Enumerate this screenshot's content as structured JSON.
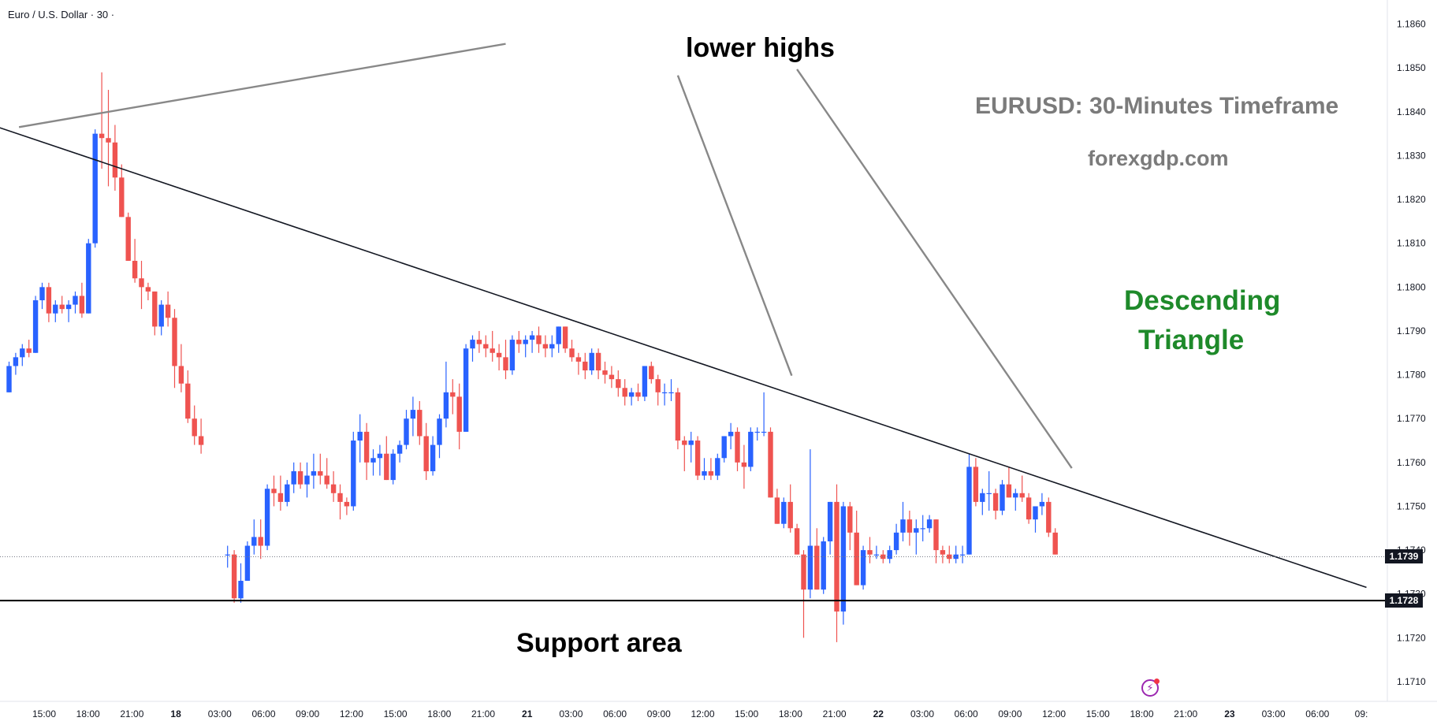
{
  "symbol_title": "Euro / U.S. Dollar · 30 ·",
  "annotations": {
    "lower_highs": "lower highs",
    "timeframe": "EURUSD: 30-Minutes Timeframe",
    "website": "forexgdp.com",
    "pattern_line1": "Descending",
    "pattern_line2": "Triangle",
    "support": "Support area"
  },
  "price_tags": {
    "last": "1.1739",
    "support": "1.1728"
  },
  "icons": {
    "flash": "flash-icon"
  },
  "colors": {
    "bull": "#2962ff",
    "bear": "#ef5350",
    "pattern_text": "#1e8a2a",
    "watermark_text": "#7b7b7b"
  },
  "chart_data": {
    "type": "candlestick",
    "title": "Euro / U.S. Dollar · 30 ·",
    "interval_minutes": 30,
    "ylim": [
      1.17055,
      1.18655
    ],
    "y_ticks": [
      "1.1860",
      "1.1850",
      "1.1840",
      "1.1830",
      "1.1820",
      "1.1810",
      "1.1800",
      "1.1790",
      "1.1780",
      "1.1770",
      "1.1760",
      "1.1750",
      "1.1740",
      "1.1730",
      "1.1720",
      "1.1710"
    ],
    "x_ticks": [
      "15:00",
      "18:00",
      "21:00",
      "18",
      "03:00",
      "06:00",
      "09:00",
      "12:00",
      "15:00",
      "18:00",
      "21:00",
      "21",
      "03:00",
      "06:00",
      "09:00",
      "12:00",
      "15:00",
      "18:00",
      "21:00",
      "22",
      "03:00",
      "06:00",
      "09:00",
      "12:00",
      "15:00",
      "18:00",
      "21:00",
      "23",
      "03:00",
      "06:00",
      "09:"
    ],
    "candles": [
      {
        "o": 1.1776,
        "h": 1.1783,
        "l": 1.1776,
        "c": 1.1782
      },
      {
        "o": 1.1782,
        "h": 1.1785,
        "l": 1.178,
        "c": 1.1784
      },
      {
        "o": 1.1784,
        "h": 1.1787,
        "l": 1.1782,
        "c": 1.1786
      },
      {
        "o": 1.1786,
        "h": 1.1788,
        "l": 1.1784,
        "c": 1.1785
      },
      {
        "o": 1.1785,
        "h": 1.1798,
        "l": 1.1785,
        "c": 1.1797
      },
      {
        "o": 1.1797,
        "h": 1.1801,
        "l": 1.1795,
        "c": 1.18
      },
      {
        "o": 1.18,
        "h": 1.1801,
        "l": 1.1792,
        "c": 1.1794
      },
      {
        "o": 1.1794,
        "h": 1.1797,
        "l": 1.1792,
        "c": 1.1796
      },
      {
        "o": 1.1796,
        "h": 1.1798,
        "l": 1.1794,
        "c": 1.1795
      },
      {
        "o": 1.1795,
        "h": 1.1797,
        "l": 1.1792,
        "c": 1.1796
      },
      {
        "o": 1.1796,
        "h": 1.1799,
        "l": 1.1794,
        "c": 1.1798
      },
      {
        "o": 1.1798,
        "h": 1.1801,
        "l": 1.1793,
        "c": 1.1794
      },
      {
        "o": 1.1794,
        "h": 1.1811,
        "l": 1.1794,
        "c": 1.181
      },
      {
        "o": 1.181,
        "h": 1.1836,
        "l": 1.1809,
        "c": 1.1835
      },
      {
        "o": 1.1835,
        "h": 1.1849,
        "l": 1.1827,
        "c": 1.1834
      },
      {
        "o": 1.1834,
        "h": 1.1845,
        "l": 1.1823,
        "c": 1.1833
      },
      {
        "o": 1.1833,
        "h": 1.1837,
        "l": 1.1822,
        "c": 1.1825
      },
      {
        "o": 1.1825,
        "h": 1.1828,
        "l": 1.1816,
        "c": 1.1816
      },
      {
        "o": 1.1816,
        "h": 1.1817,
        "l": 1.1806,
        "c": 1.1806
      },
      {
        "o": 1.1806,
        "h": 1.1811,
        "l": 1.1801,
        "c": 1.1802
      },
      {
        "o": 1.1802,
        "h": 1.1806,
        "l": 1.1795,
        "c": 1.18
      },
      {
        "o": 1.18,
        "h": 1.1801,
        "l": 1.1797,
        "c": 1.1799
      },
      {
        "o": 1.1799,
        "h": 1.1799,
        "l": 1.1789,
        "c": 1.1791
      },
      {
        "o": 1.1791,
        "h": 1.1797,
        "l": 1.1789,
        "c": 1.1796
      },
      {
        "o": 1.1796,
        "h": 1.1799,
        "l": 1.1791,
        "c": 1.1793
      },
      {
        "o": 1.1793,
        "h": 1.1795,
        "l": 1.1777,
        "c": 1.1782
      },
      {
        "o": 1.1782,
        "h": 1.1787,
        "l": 1.1776,
        "c": 1.1778
      },
      {
        "o": 1.1778,
        "h": 1.1781,
        "l": 1.1769,
        "c": 1.177
      },
      {
        "o": 1.177,
        "h": 1.1773,
        "l": 1.1764,
        "c": 1.1766
      },
      {
        "o": 1.1766,
        "h": 1.177,
        "l": 1.1762,
        "c": 1.1764
      },
      {
        "o": 1.1739,
        "h": 1.1741,
        "l": 1.1736,
        "c": 1.1739
      },
      {
        "o": 1.1739,
        "h": 1.174,
        "l": 1.1728,
        "c": 1.1729
      },
      {
        "o": 1.1729,
        "h": 1.1737,
        "l": 1.1728,
        "c": 1.1733
      },
      {
        "o": 1.1733,
        "h": 1.1742,
        "l": 1.1733,
        "c": 1.1741
      },
      {
        "o": 1.1741,
        "h": 1.1747,
        "l": 1.1739,
        "c": 1.1743
      },
      {
        "o": 1.1743,
        "h": 1.1747,
        "l": 1.1738,
        "c": 1.1741
      },
      {
        "o": 1.1741,
        "h": 1.1755,
        "l": 1.174,
        "c": 1.1754
      },
      {
        "o": 1.1754,
        "h": 1.1757,
        "l": 1.175,
        "c": 1.1753
      },
      {
        "o": 1.1753,
        "h": 1.1757,
        "l": 1.1749,
        "c": 1.1751
      },
      {
        "o": 1.1751,
        "h": 1.1756,
        "l": 1.175,
        "c": 1.1755
      },
      {
        "o": 1.1755,
        "h": 1.176,
        "l": 1.1753,
        "c": 1.1758
      },
      {
        "o": 1.1758,
        "h": 1.176,
        "l": 1.1754,
        "c": 1.1755
      },
      {
        "o": 1.1755,
        "h": 1.176,
        "l": 1.1752,
        "c": 1.1757
      },
      {
        "o": 1.1757,
        "h": 1.1762,
        "l": 1.1754,
        "c": 1.1758
      },
      {
        "o": 1.1758,
        "h": 1.1762,
        "l": 1.1755,
        "c": 1.1757
      },
      {
        "o": 1.1757,
        "h": 1.1761,
        "l": 1.1754,
        "c": 1.1755
      },
      {
        "o": 1.1755,
        "h": 1.1758,
        "l": 1.1751,
        "c": 1.1753
      },
      {
        "o": 1.1753,
        "h": 1.1755,
        "l": 1.1747,
        "c": 1.1751
      },
      {
        "o": 1.1751,
        "h": 1.1752,
        "l": 1.1748,
        "c": 1.175
      },
      {
        "o": 1.175,
        "h": 1.1767,
        "l": 1.1749,
        "c": 1.1765
      },
      {
        "o": 1.1765,
        "h": 1.1771,
        "l": 1.176,
        "c": 1.1767
      },
      {
        "o": 1.1767,
        "h": 1.1769,
        "l": 1.1756,
        "c": 1.176
      },
      {
        "o": 1.176,
        "h": 1.1763,
        "l": 1.1757,
        "c": 1.1761
      },
      {
        "o": 1.1761,
        "h": 1.1764,
        "l": 1.1757,
        "c": 1.1762
      },
      {
        "o": 1.1762,
        "h": 1.1766,
        "l": 1.1756,
        "c": 1.1756
      },
      {
        "o": 1.1756,
        "h": 1.1763,
        "l": 1.1755,
        "c": 1.1762
      },
      {
        "o": 1.1762,
        "h": 1.1765,
        "l": 1.176,
        "c": 1.1764
      },
      {
        "o": 1.1764,
        "h": 1.1772,
        "l": 1.1763,
        "c": 1.177
      },
      {
        "o": 1.177,
        "h": 1.1775,
        "l": 1.1766,
        "c": 1.1772
      },
      {
        "o": 1.1772,
        "h": 1.1774,
        "l": 1.1764,
        "c": 1.1766
      },
      {
        "o": 1.1766,
        "h": 1.1769,
        "l": 1.1756,
        "c": 1.1758
      },
      {
        "o": 1.1758,
        "h": 1.1766,
        "l": 1.1757,
        "c": 1.1764
      },
      {
        "o": 1.1764,
        "h": 1.1771,
        "l": 1.1761,
        "c": 1.177
      },
      {
        "o": 1.177,
        "h": 1.1783,
        "l": 1.1768,
        "c": 1.1776
      },
      {
        "o": 1.1776,
        "h": 1.1779,
        "l": 1.1771,
        "c": 1.1775
      },
      {
        "o": 1.1775,
        "h": 1.1778,
        "l": 1.1763,
        "c": 1.1767
      },
      {
        "o": 1.1767,
        "h": 1.1787,
        "l": 1.1767,
        "c": 1.1786
      },
      {
        "o": 1.1786,
        "h": 1.1789,
        "l": 1.1783,
        "c": 1.1788
      },
      {
        "o": 1.1788,
        "h": 1.179,
        "l": 1.1785,
        "c": 1.1787
      },
      {
        "o": 1.1787,
        "h": 1.1789,
        "l": 1.1784,
        "c": 1.1786
      },
      {
        "o": 1.1786,
        "h": 1.179,
        "l": 1.1783,
        "c": 1.1785
      },
      {
        "o": 1.1785,
        "h": 1.1787,
        "l": 1.1781,
        "c": 1.1784
      },
      {
        "o": 1.1784,
        "h": 1.1788,
        "l": 1.1779,
        "c": 1.1781
      },
      {
        "o": 1.1781,
        "h": 1.1789,
        "l": 1.178,
        "c": 1.1788
      },
      {
        "o": 1.1788,
        "h": 1.179,
        "l": 1.1785,
        "c": 1.1787
      },
      {
        "o": 1.1787,
        "h": 1.1789,
        "l": 1.1784,
        "c": 1.1788
      },
      {
        "o": 1.1788,
        "h": 1.179,
        "l": 1.1785,
        "c": 1.1789
      },
      {
        "o": 1.1789,
        "h": 1.1791,
        "l": 1.1785,
        "c": 1.1787
      },
      {
        "o": 1.1787,
        "h": 1.1789,
        "l": 1.1784,
        "c": 1.1786
      },
      {
        "o": 1.1786,
        "h": 1.1789,
        "l": 1.1784,
        "c": 1.1787
      },
      {
        "o": 1.1787,
        "h": 1.1791,
        "l": 1.1785,
        "c": 1.1791
      },
      {
        "o": 1.1791,
        "h": 1.1791,
        "l": 1.1785,
        "c": 1.1786
      },
      {
        "o": 1.1786,
        "h": 1.1788,
        "l": 1.1783,
        "c": 1.1784
      },
      {
        "o": 1.1784,
        "h": 1.1785,
        "l": 1.178,
        "c": 1.1783
      },
      {
        "o": 1.1783,
        "h": 1.1785,
        "l": 1.1779,
        "c": 1.1781
      },
      {
        "o": 1.1781,
        "h": 1.1786,
        "l": 1.178,
        "c": 1.1785
      },
      {
        "o": 1.1785,
        "h": 1.1786,
        "l": 1.1779,
        "c": 1.1781
      },
      {
        "o": 1.1781,
        "h": 1.1783,
        "l": 1.1778,
        "c": 1.178
      },
      {
        "o": 1.178,
        "h": 1.1782,
        "l": 1.1777,
        "c": 1.1779
      },
      {
        "o": 1.1779,
        "h": 1.1781,
        "l": 1.1775,
        "c": 1.1777
      },
      {
        "o": 1.1777,
        "h": 1.1779,
        "l": 1.1773,
        "c": 1.1775
      },
      {
        "o": 1.1775,
        "h": 1.1777,
        "l": 1.1773,
        "c": 1.1776
      },
      {
        "o": 1.1776,
        "h": 1.1778,
        "l": 1.1774,
        "c": 1.1775
      },
      {
        "o": 1.1775,
        "h": 1.1782,
        "l": 1.1774,
        "c": 1.1782
      },
      {
        "o": 1.1782,
        "h": 1.1783,
        "l": 1.1778,
        "c": 1.1779
      },
      {
        "o": 1.1779,
        "h": 1.178,
        "l": 1.1773,
        "c": 1.1776
      },
      {
        "o": 1.1776,
        "h": 1.1778,
        "l": 1.1773,
        "c": 1.1776
      },
      {
        "o": 1.1776,
        "h": 1.1779,
        "l": 1.1774,
        "c": 1.1776
      },
      {
        "o": 1.1776,
        "h": 1.1777,
        "l": 1.1763,
        "c": 1.1765
      },
      {
        "o": 1.1765,
        "h": 1.1766,
        "l": 1.1758,
        "c": 1.1764
      },
      {
        "o": 1.1764,
        "h": 1.1767,
        "l": 1.176,
        "c": 1.1765
      },
      {
        "o": 1.1765,
        "h": 1.1766,
        "l": 1.1756,
        "c": 1.1757
      },
      {
        "o": 1.1757,
        "h": 1.1761,
        "l": 1.1756,
        "c": 1.1758
      },
      {
        "o": 1.1758,
        "h": 1.1761,
        "l": 1.1756,
        "c": 1.1757
      },
      {
        "o": 1.1757,
        "h": 1.1762,
        "l": 1.1756,
        "c": 1.1761
      },
      {
        "o": 1.1761,
        "h": 1.1766,
        "l": 1.176,
        "c": 1.1766
      },
      {
        "o": 1.1766,
        "h": 1.1769,
        "l": 1.1763,
        "c": 1.1767
      },
      {
        "o": 1.1767,
        "h": 1.1768,
        "l": 1.1758,
        "c": 1.176
      },
      {
        "o": 1.176,
        "h": 1.1764,
        "l": 1.1754,
        "c": 1.1759
      },
      {
        "o": 1.1759,
        "h": 1.1768,
        "l": 1.1758,
        "c": 1.1767
      },
      {
        "o": 1.1767,
        "h": 1.1768,
        "l": 1.1765,
        "c": 1.1767
      },
      {
        "o": 1.1767,
        "h": 1.1776,
        "l": 1.1766,
        "c": 1.1767
      },
      {
        "o": 1.1767,
        "h": 1.1768,
        "l": 1.1752,
        "c": 1.1752
      },
      {
        "o": 1.1752,
        "h": 1.1754,
        "l": 1.1746,
        "c": 1.1746
      },
      {
        "o": 1.1746,
        "h": 1.1752,
        "l": 1.1745,
        "c": 1.1751
      },
      {
        "o": 1.1751,
        "h": 1.1755,
        "l": 1.1744,
        "c": 1.1745
      },
      {
        "o": 1.1745,
        "h": 1.1746,
        "l": 1.1739,
        "c": 1.1739
      },
      {
        "o": 1.1739,
        "h": 1.174,
        "l": 1.172,
        "c": 1.1731
      },
      {
        "o": 1.1731,
        "h": 1.1763,
        "l": 1.1729,
        "c": 1.1741
      },
      {
        "o": 1.1741,
        "h": 1.1745,
        "l": 1.1731,
        "c": 1.1731
      },
      {
        "o": 1.1731,
        "h": 1.1743,
        "l": 1.173,
        "c": 1.1742
      },
      {
        "o": 1.1742,
        "h": 1.1751,
        "l": 1.1739,
        "c": 1.1751
      },
      {
        "o": 1.1751,
        "h": 1.1755,
        "l": 1.1719,
        "c": 1.1726
      },
      {
        "o": 1.1726,
        "h": 1.1751,
        "l": 1.1723,
        "c": 1.175
      },
      {
        "o": 1.175,
        "h": 1.1751,
        "l": 1.174,
        "c": 1.1744
      },
      {
        "o": 1.1744,
        "h": 1.1749,
        "l": 1.1732,
        "c": 1.1732
      },
      {
        "o": 1.1732,
        "h": 1.1741,
        "l": 1.1731,
        "c": 1.174
      },
      {
        "o": 1.174,
        "h": 1.1743,
        "l": 1.1737,
        "c": 1.1739
      },
      {
        "o": 1.1739,
        "h": 1.1741,
        "l": 1.1738,
        "c": 1.1739
      },
      {
        "o": 1.1739,
        "h": 1.174,
        "l": 1.1737,
        "c": 1.1738
      },
      {
        "o": 1.1738,
        "h": 1.1741,
        "l": 1.1737,
        "c": 1.174
      },
      {
        "o": 1.174,
        "h": 1.1746,
        "l": 1.1739,
        "c": 1.1744
      },
      {
        "o": 1.1744,
        "h": 1.1751,
        "l": 1.1742,
        "c": 1.1747
      },
      {
        "o": 1.1747,
        "h": 1.1749,
        "l": 1.1741,
        "c": 1.1744
      },
      {
        "o": 1.1744,
        "h": 1.1747,
        "l": 1.1739,
        "c": 1.1745
      },
      {
        "o": 1.1745,
        "h": 1.1748,
        "l": 1.1742,
        "c": 1.1745
      },
      {
        "o": 1.1745,
        "h": 1.1748,
        "l": 1.1744,
        "c": 1.1747
      },
      {
        "o": 1.1747,
        "h": 1.1747,
        "l": 1.1737,
        "c": 1.174
      },
      {
        "o": 1.174,
        "h": 1.1741,
        "l": 1.1737,
        "c": 1.1739
      },
      {
        "o": 1.1739,
        "h": 1.1741,
        "l": 1.1737,
        "c": 1.1738
      },
      {
        "o": 1.1738,
        "h": 1.1741,
        "l": 1.1737,
        "c": 1.1739
      },
      {
        "o": 1.1739,
        "h": 1.1741,
        "l": 1.1737,
        "c": 1.1739
      },
      {
        "o": 1.1739,
        "h": 1.1762,
        "l": 1.1739,
        "c": 1.1759
      },
      {
        "o": 1.1759,
        "h": 1.1761,
        "l": 1.175,
        "c": 1.1751
      },
      {
        "o": 1.1751,
        "h": 1.1754,
        "l": 1.1748,
        "c": 1.1753
      },
      {
        "o": 1.1753,
        "h": 1.1758,
        "l": 1.1749,
        "c": 1.1753
      },
      {
        "o": 1.1753,
        "h": 1.1754,
        "l": 1.1747,
        "c": 1.1749
      },
      {
        "o": 1.1749,
        "h": 1.1756,
        "l": 1.1748,
        "c": 1.1755
      },
      {
        "o": 1.1755,
        "h": 1.1759,
        "l": 1.1752,
        "c": 1.1752
      },
      {
        "o": 1.1752,
        "h": 1.1754,
        "l": 1.1749,
        "c": 1.1753
      },
      {
        "o": 1.1753,
        "h": 1.1757,
        "l": 1.1751,
        "c": 1.1752
      },
      {
        "o": 1.1752,
        "h": 1.1753,
        "l": 1.1746,
        "c": 1.1747
      },
      {
        "o": 1.1747,
        "h": 1.1749,
        "l": 1.1744,
        "c": 1.175
      },
      {
        "o": 1.175,
        "h": 1.1753,
        "l": 1.1748,
        "c": 1.1751
      },
      {
        "o": 1.1751,
        "h": 1.1752,
        "l": 1.1743,
        "c": 1.1744
      },
      {
        "o": 1.1744,
        "h": 1.1745,
        "l": 1.1739,
        "c": 1.1739
      }
    ],
    "lines": [
      {
        "type": "trendline",
        "label": "descending trendline",
        "p1": {
          "bar": -13.5,
          "price": 1.18425
        },
        "p2": {
          "bar": 205,
          "price": 1.17315
        }
      },
      {
        "type": "horizontal",
        "label": "support",
        "price": 1.17285
      },
      {
        "type": "horizontal-dotted",
        "label": "last price",
        "price": 1.17385
      }
    ],
    "callouts": [
      {
        "from": {
          "bar": 75,
          "price": 1.18555
        },
        "to": {
          "bar": 1.5,
          "price": 1.18365
        }
      },
      {
        "from": {
          "bar": 101,
          "price": 1.18483
        },
        "to": {
          "bar": 118.2,
          "price": 1.17798
        }
      },
      {
        "from": {
          "bar": 119,
          "price": 1.18497
        },
        "to": {
          "bar": 160.5,
          "price": 1.17587
        }
      }
    ]
  }
}
